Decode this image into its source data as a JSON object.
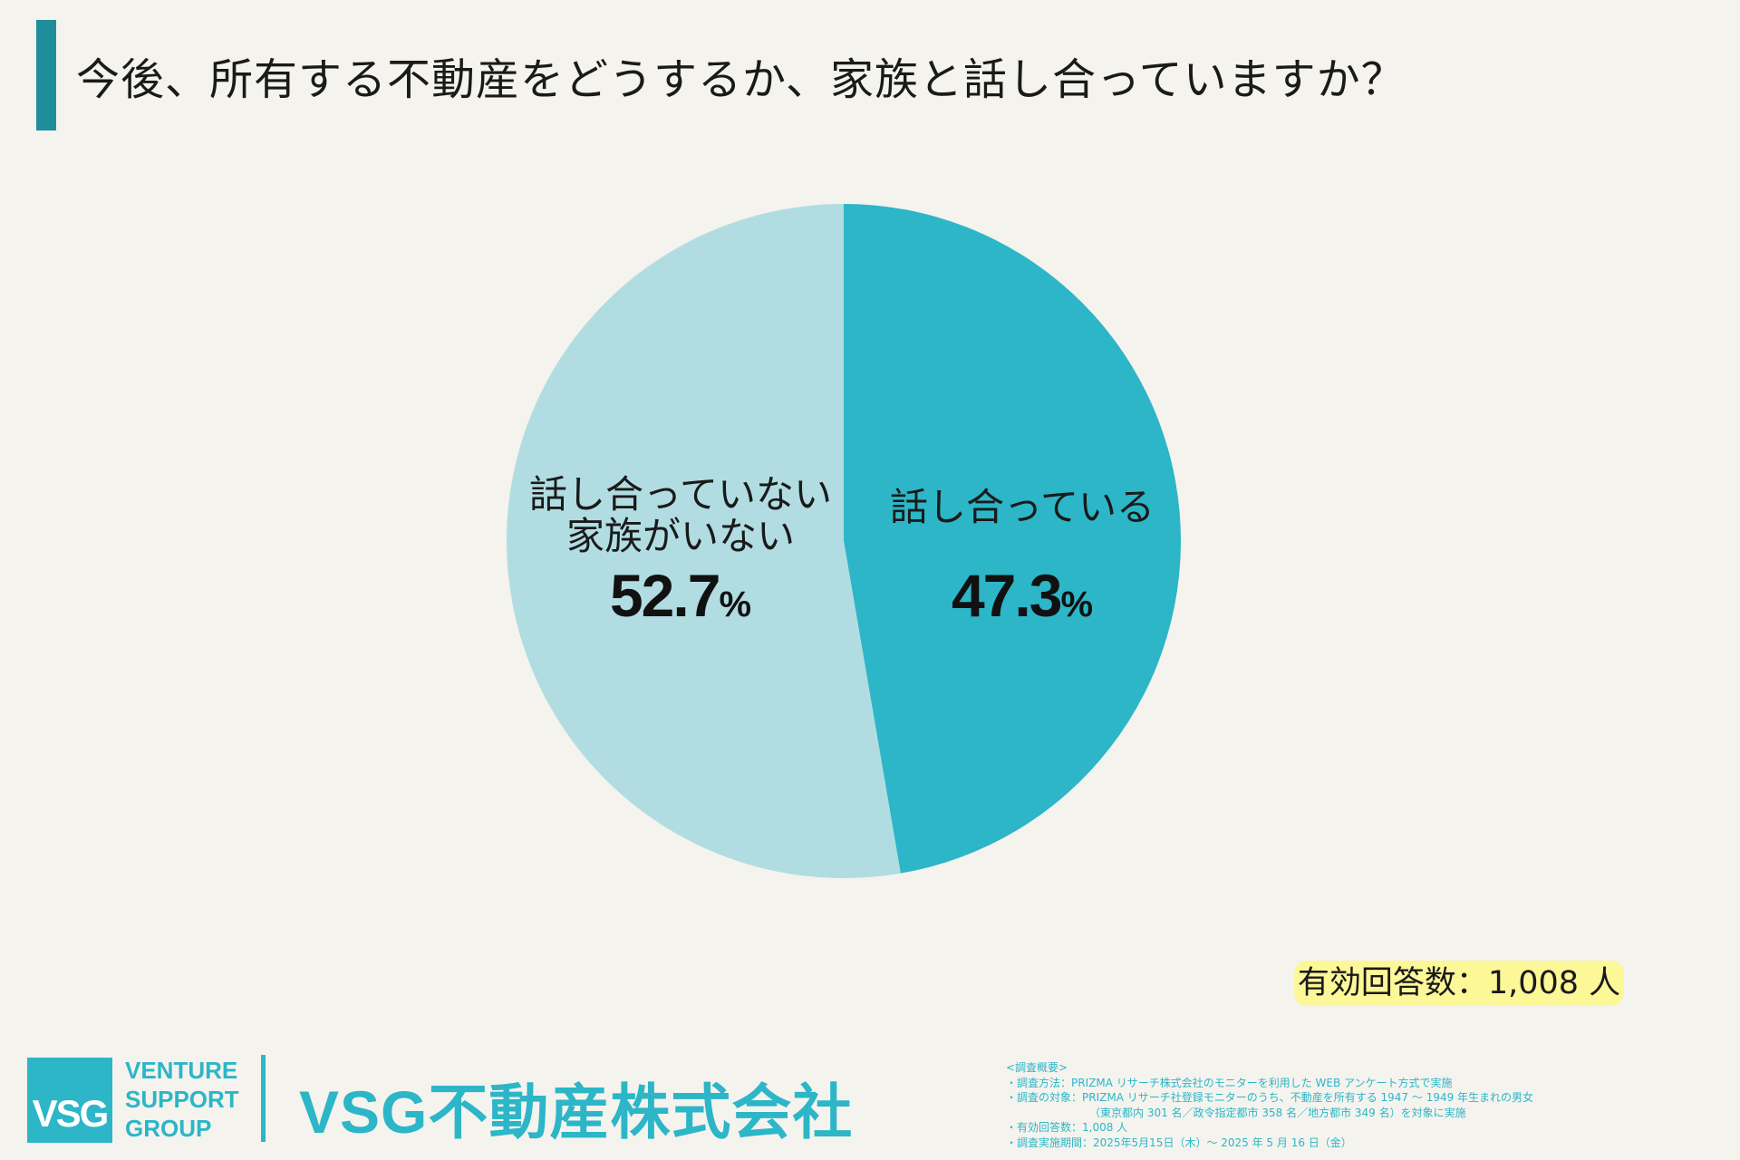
{
  "title": "今後、所有する不動産をどうするか、家族と話し合っていますか？",
  "chart_data": {
    "type": "pie",
    "slices": [
      {
        "label": "話し合っている",
        "value": 47.3,
        "value_label": "47.3",
        "unit": "%",
        "color": "#2cb6c7"
      },
      {
        "label_lines": [
          "話し合っていない",
          "家族がいない"
        ],
        "value": 52.7,
        "value_label": "52.7",
        "unit": "%",
        "color": "#b1dde2"
      }
    ]
  },
  "respondents_badge": "有効回答数：1,008 人",
  "logo": {
    "mark": "VSG",
    "lines": [
      "VENTURE",
      "SUPPORT",
      "GROUP"
    ],
    "company": "VSG不動産株式会社"
  },
  "survey_notes": [
    "<調査概要>",
    "・調査方法：PRIZMA リサーチ株式会社のモニターを利用した WEB アンケート方式で実施",
    "・調査の対象：PRIZMA リサーチ社登録モニターのうち、不動産を所有する 1947 ～ 1949 年生まれの男女",
    "（東京都内 301 名／政令指定都市 358 名／地方都市 349 名）を対象に実施",
    "・有効回答数：1,008 人",
    "・調査実施期間：2025年5月15日（木）～ 2025 年 5 月 16 日（金）"
  ],
  "colors": {
    "accent": "#1e8e9a",
    "brand": "#2cb6c7",
    "badge": "#fcf797",
    "background": "#f4f3ee"
  }
}
